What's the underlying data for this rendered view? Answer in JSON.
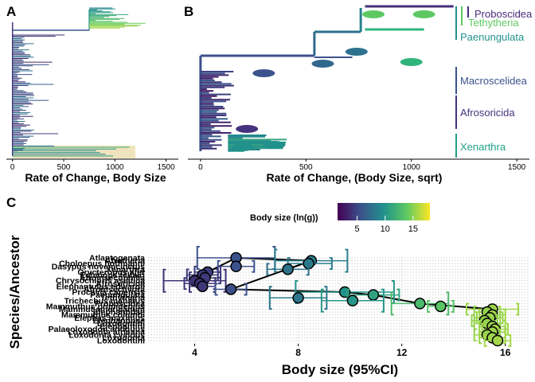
{
  "panels": {
    "a_letter": "A",
    "b_letter": "B",
    "c_letter": "C"
  },
  "chart_data": [
    {
      "type": "line",
      "panel": "A",
      "xlabel": "Rate of Change, Body Size",
      "ylabel": "",
      "xlim": [
        -60,
        1620
      ],
      "x_ticks": [
        "0",
        "500",
        "1000",
        "1500"
      ],
      "x_tick_values": [
        0,
        500,
        1000,
        1500
      ],
      "highlight_color": "#efe4bd"
    },
    {
      "type": "line",
      "panel": "B",
      "xlabel": "Rate of Change, (Body Size, sqrt)",
      "ylabel": "",
      "xlim": [
        -60,
        1560
      ],
      "x_ticks": [
        "0",
        "500",
        "1000",
        "1500"
      ],
      "x_tick_values": [
        0,
        500,
        1000,
        1500
      ],
      "clades": [
        {
          "name": "Proboscidea",
          "color": "#4b2a7b"
        },
        {
          "name": "Tethytheria",
          "color": "#5ec962"
        },
        {
          "name": "Paenungulata",
          "color": "#21918c"
        },
        {
          "name": "Macroscelidea",
          "color": "#3b528b"
        },
        {
          "name": "Afrosoricida",
          "color": "#46327e"
        },
        {
          "name": "Xenarthra",
          "color": "#1fa187"
        }
      ]
    },
    {
      "type": "scatter",
      "panel": "C",
      "xlabel": "Body size (95%CI)",
      "ylabel": "Species/Ancestor",
      "xlim": [
        2.2,
        16.9
      ],
      "x_ticks": [
        "4",
        "8",
        "12",
        "16"
      ],
      "x_tick_values": [
        4,
        8,
        12,
        16
      ],
      "grid": true,
      "legend": {
        "title": "Body size (ln(g))",
        "ticks": [
          "5",
          "10",
          "15"
        ],
        "tick_values": [
          5,
          10,
          15
        ],
        "range": [
          1.5,
          18.0
        ],
        "position": "top"
      },
      "series": [
        {
          "label": "Atlantogenata",
          "mean": 5.6,
          "lo": 4.1,
          "hi": 7.1
        },
        {
          "label": "Afrotheria",
          "mean": 8.5,
          "lo": 7.1,
          "hi": 9.9
        },
        {
          "label": "Cholοepus hoffmanni",
          "mean": 8.4,
          "lo": 7.6,
          "hi": 9.3
        },
        {
          "label": "Dasypus novemcinctus",
          "mean": 5.6,
          "lo": 4.9,
          "hi": 6.3
        },
        {
          "label": "Xenarthra",
          "mean": 7.6,
          "lo": 6.8,
          "hi": 8.4
        },
        {
          "label": "Orycteropus afer",
          "mean": 4.5,
          "lo": 4.0,
          "hi": 5.0
        },
        {
          "label": "Echinops telfairi",
          "mean": 4.3,
          "lo": 3.7,
          "hi": 4.9
        },
        {
          "label": "Afroinsectiphilia",
          "mean": 4.4,
          "lo": 3.8,
          "hi": 5.0
        },
        {
          "label": "Chrysochloris asiatica",
          "mean": 4.0,
          "lo": 2.8,
          "hi": 5.2
        },
        {
          "label": "Afrosoricida",
          "mean": 4.2,
          "lo": 3.6,
          "hi": 4.8
        },
        {
          "label": "Elephantulus edwardii",
          "mean": 4.3,
          "lo": 3.8,
          "hi": 4.8
        },
        {
          "label": "Afroinsectivora",
          "mean": 5.4,
          "lo": 4.8,
          "hi": 6.0
        },
        {
          "label": "Procavia capensis",
          "mean": 9.8,
          "lo": 7.9,
          "hi": 11.7
        },
        {
          "label": "Paenungulata",
          "mean": 10.9,
          "lo": 9.9,
          "hi": 11.9
        },
        {
          "label": "Tethytheria",
          "mean": 8.0,
          "lo": 6.9,
          "hi": 9.1
        },
        {
          "label": "Trichechus manatus",
          "mean": 10.1,
          "lo": 8.9,
          "hi": 11.3
        },
        {
          "label": "Proboscidea",
          "mean": 12.7,
          "lo": 11.6,
          "hi": 13.8
        },
        {
          "label": "Mammuthus primigenius",
          "mean": 13.5,
          "lo": 13.0,
          "hi": 14.0
        },
        {
          "label": "Mammut americanum",
          "mean": 15.5,
          "lo": 14.5,
          "hi": 16.5
        },
        {
          "label": "Elephantidae",
          "mean": 15.3,
          "lo": 14.8,
          "hi": 15.8
        },
        {
          "label": "Mammuthus columbi",
          "mean": 15.5,
          "lo": 15.0,
          "hi": 16.0
        },
        {
          "label": "Elephas maximus",
          "mean": 15.4,
          "lo": 14.9,
          "hi": 15.9
        },
        {
          "label": "Elephantinae",
          "mean": 15.2,
          "lo": 14.7,
          "hi": 15.7
        },
        {
          "label": "Loxodontini",
          "mean": 15.3,
          "lo": 14.8,
          "hi": 15.8
        },
        {
          "label": "Elephantini",
          "mean": 15.5,
          "lo": 15.0,
          "hi": 16.0
        },
        {
          "label": "Palaeoloxodon antiquus",
          "mean": 15.6,
          "lo": 15.1,
          "hi": 16.1
        },
        {
          "label": "Loxodonta africana",
          "mean": 15.5,
          "lo": 15.0,
          "hi": 16.0
        },
        {
          "label": "Loxodonta cyclotis",
          "mean": 15.3,
          "lo": 14.8,
          "hi": 15.8
        },
        {
          "label": "Loxodonta",
          "mean": 15.5,
          "lo": 15.0,
          "hi": 16.0
        },
        {
          "label": "Loxodontini",
          "mean": 15.7,
          "lo": 15.2,
          "hi": 16.2
        }
      ]
    }
  ]
}
